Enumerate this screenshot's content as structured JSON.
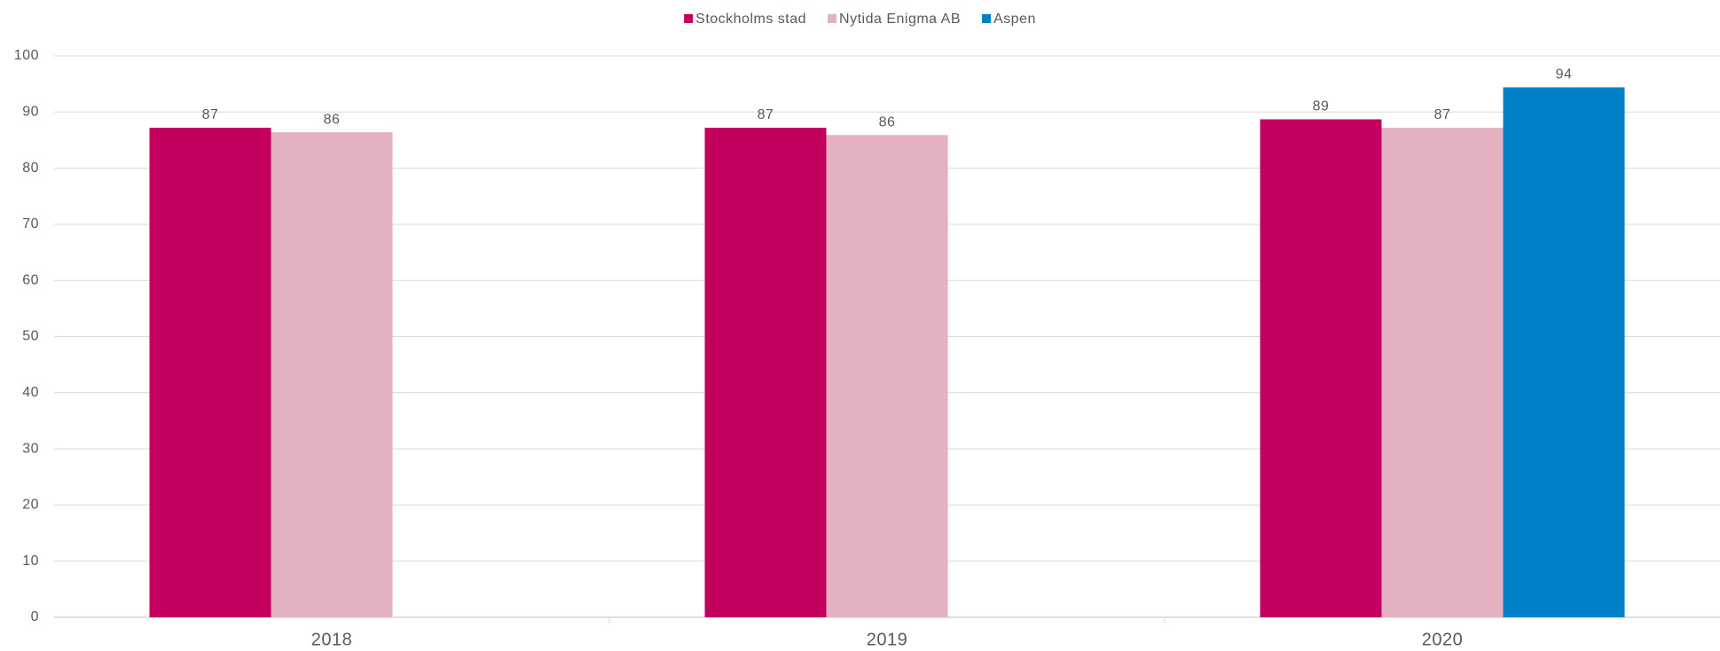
{
  "chart_data": {
    "type": "bar",
    "categories": [
      "2018",
      "2019",
      "2020"
    ],
    "series": [
      {
        "name": "Stockholms stad",
        "color": "#c4005f",
        "values": [
          87.2,
          87.2,
          88.7
        ],
        "value_labels": [
          "87",
          "87",
          "89"
        ]
      },
      {
        "name": "Nytida Enigma AB",
        "color": "#e3b1c1",
        "values": [
          86.4,
          85.9,
          87.2
        ],
        "value_labels": [
          "86",
          "86",
          "87"
        ]
      },
      {
        "name": "Aspen",
        "color": "#0080c6",
        "values": [
          null,
          null,
          94.4
        ],
        "value_labels": [
          null,
          null,
          "94"
        ]
      }
    ],
    "ylim": [
      0,
      100
    ],
    "yticks": [
      0,
      10,
      20,
      30,
      40,
      50,
      60,
      70,
      80,
      90,
      100
    ],
    "grid": true,
    "legend": "top"
  }
}
